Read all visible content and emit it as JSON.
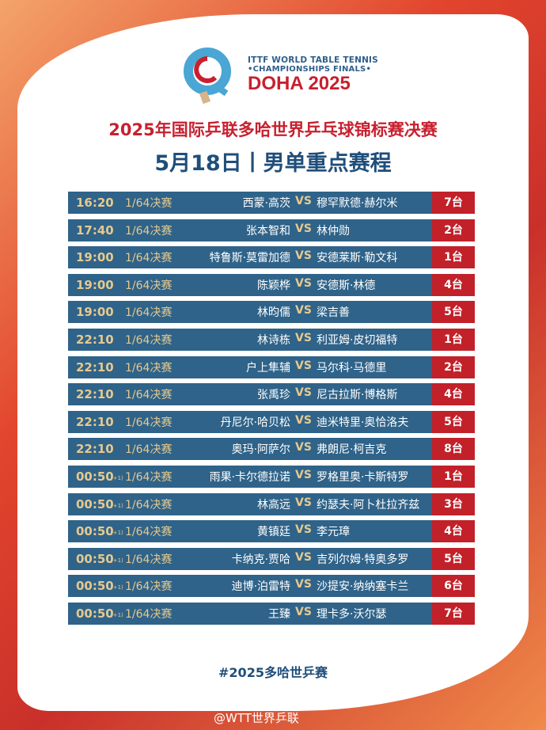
{
  "logo": {
    "line1": "ITTF WORLD TABLE TENNIS",
    "line2": "•CHAMPIONSHIPS FINALS•",
    "line3": "DOHA 2025"
  },
  "title": "2025年国际乒联多哈世界乒乓球锦标赛决赛",
  "subtitle": "5月18日丨男单重点赛程",
  "vs_label": "VS",
  "next_day_marker": "(+1)",
  "rows": [
    {
      "time": "16:20",
      "next": false,
      "round": "1/64决赛",
      "p1": "西蒙·高茨",
      "p2": "穆罕默德·赫尔米",
      "table": "7台"
    },
    {
      "time": "17:40",
      "next": false,
      "round": "1/64决赛",
      "p1": "张本智和",
      "p2": "林仲勋",
      "table": "2台"
    },
    {
      "time": "19:00",
      "next": false,
      "round": "1/64决赛",
      "p1": "特鲁斯·莫雷加德",
      "p2": "安德莱斯·勒文科",
      "table": "1台"
    },
    {
      "time": "19:00",
      "next": false,
      "round": "1/64决赛",
      "p1": "陈颖桦",
      "p2": "安德斯·林德",
      "table": "4台"
    },
    {
      "time": "19:00",
      "next": false,
      "round": "1/64决赛",
      "p1": "林昀儒",
      "p2": "梁吉善",
      "table": "5台"
    },
    {
      "time": "22:10",
      "next": false,
      "round": "1/64决赛",
      "p1": "林诗栋",
      "p2": "利亚姆·皮切福特",
      "table": "1台"
    },
    {
      "time": "22:10",
      "next": false,
      "round": "1/64决赛",
      "p1": "户上隼辅",
      "p2": "马尔科·马德里",
      "table": "2台"
    },
    {
      "time": "22:10",
      "next": false,
      "round": "1/64决赛",
      "p1": "张禹珍",
      "p2": "尼古拉斯·博格斯",
      "table": "4台"
    },
    {
      "time": "22:10",
      "next": false,
      "round": "1/64决赛",
      "p1": "丹尼尔·哈贝松",
      "p2": "迪米特里·奥恰洛夫",
      "table": "5台"
    },
    {
      "time": "22:10",
      "next": false,
      "round": "1/64决赛",
      "p1": "奥玛·阿萨尔",
      "p2": "弗朗尼·柯吉克",
      "table": "8台"
    },
    {
      "time": "00:50",
      "next": true,
      "round": "1/64决赛",
      "p1": "雨果·卡尔德拉诺",
      "p2": "罗格里奥·卡斯特罗",
      "table": "1台"
    },
    {
      "time": "00:50",
      "next": true,
      "round": "1/64决赛",
      "p1": "林高远",
      "p2": "约瑟夫·阿卜杜拉齐兹",
      "table": "3台"
    },
    {
      "time": "00:50",
      "next": true,
      "round": "1/64决赛",
      "p1": "黄镇廷",
      "p2": "李元璋",
      "table": "4台"
    },
    {
      "time": "00:50",
      "next": true,
      "round": "1/64决赛",
      "p1": "卡纳克·贾哈",
      "p2": "吉列尔姆·特奥多罗",
      "table": "5台"
    },
    {
      "time": "00:50",
      "next": true,
      "round": "1/64决赛",
      "p1": "迪博·泊雷特",
      "p2": "沙提安·纳纳塞卡兰",
      "table": "6台"
    },
    {
      "time": "00:50",
      "next": true,
      "round": "1/64决赛",
      "p1": "王臻",
      "p2": "理卡多·沃尔瑟",
      "table": "7台"
    }
  ],
  "hashtag": "#2025多哈世乒赛",
  "watermark": "@WTT世界乒联",
  "colors": {
    "row": "#2f6389",
    "table": "#c2212a",
    "gold": "#e6c98f",
    "title_red": "#c8202f",
    "title_blue": "#1f4e7a"
  }
}
